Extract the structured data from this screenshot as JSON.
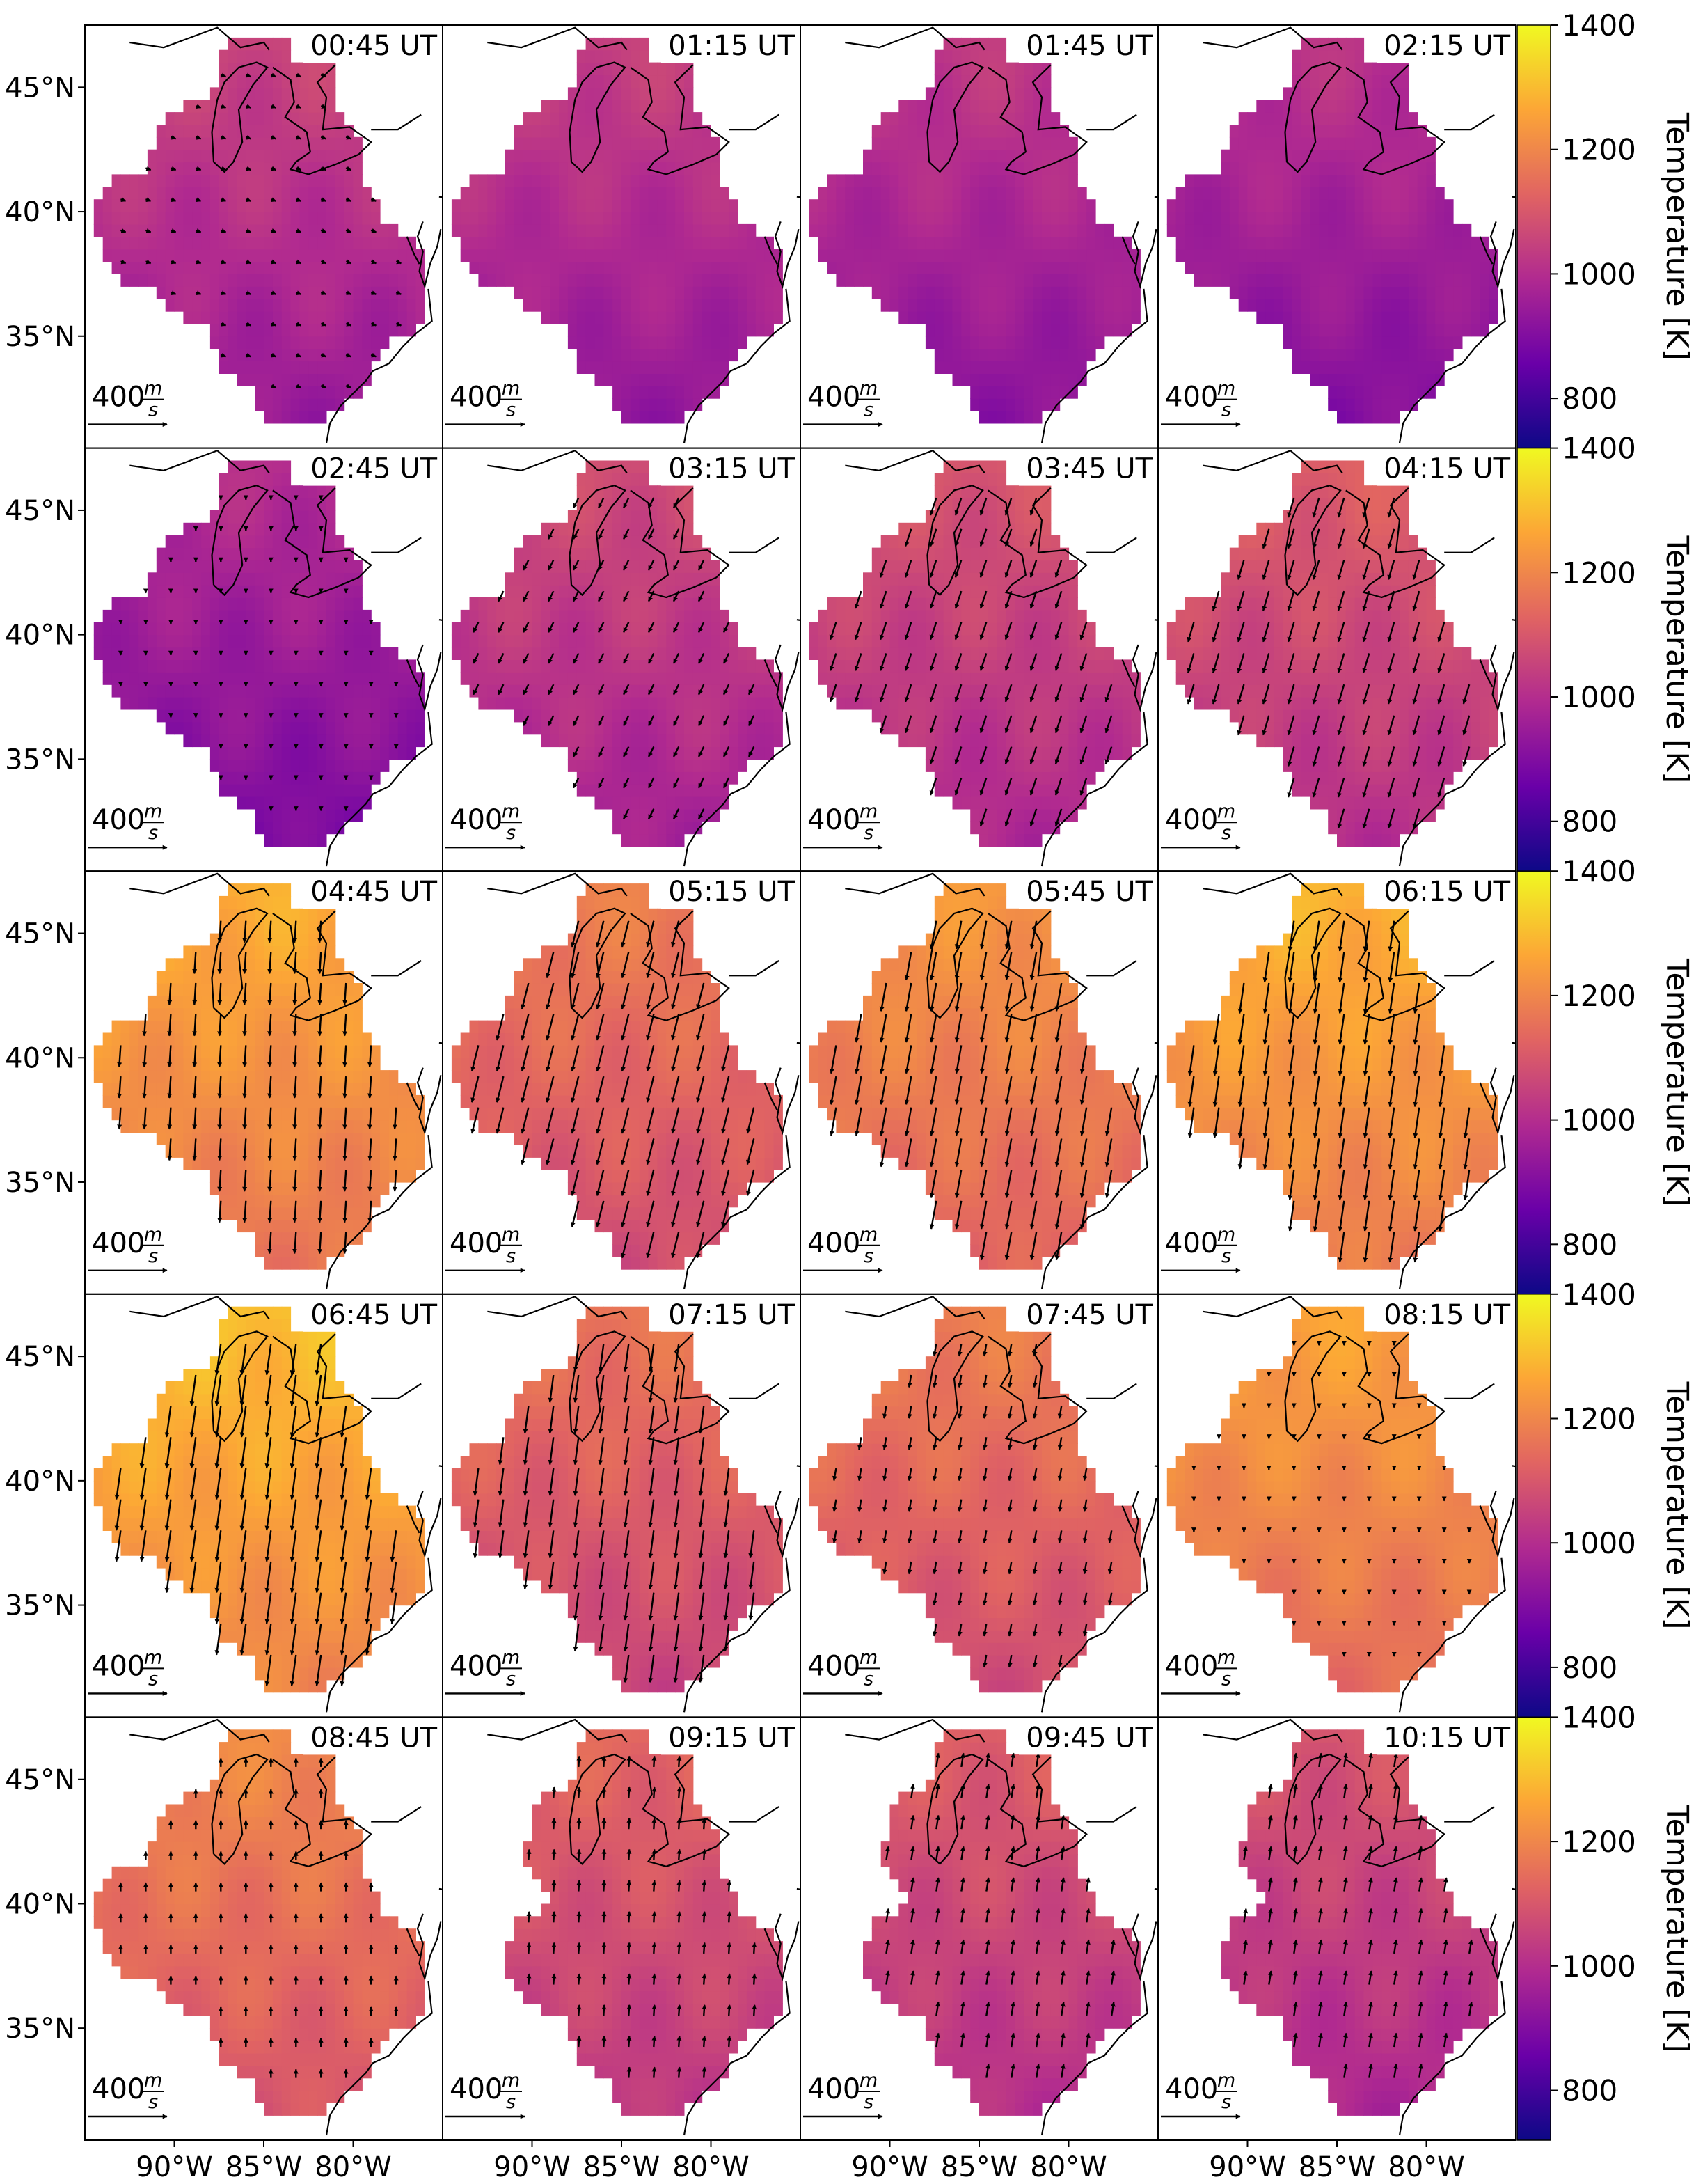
{
  "chart_data": {
    "type": "heatmap",
    "title": "",
    "panel_layout": {
      "rows": 5,
      "cols": 4
    },
    "panels": [
      {
        "time": "00:45 UT",
        "mean_temperature_K": 1000,
        "wind_u_ms": 70,
        "wind_v_ms": -25,
        "mask": "full"
      },
      {
        "time": "01:15 UT",
        "mean_temperature_K": 990,
        "wind_u_ms": 0,
        "wind_v_ms": 0,
        "mask": "full"
      },
      {
        "time": "01:45 UT",
        "mean_temperature_K": 975,
        "wind_u_ms": 0,
        "wind_v_ms": 0,
        "mask": "full"
      },
      {
        "time": "02:15 UT",
        "mean_temperature_K": 960,
        "wind_u_ms": 0,
        "wind_v_ms": 0,
        "mask": "full"
      },
      {
        "time": "02:45 UT",
        "mean_temperature_K": 945,
        "wind_u_ms": 0,
        "wind_v_ms": -25,
        "mask": "full"
      },
      {
        "time": "03:15 UT",
        "mean_temperature_K": 1020,
        "wind_u_ms": -70,
        "wind_v_ms": -140,
        "mask": "full"
      },
      {
        "time": "03:45 UT",
        "mean_temperature_K": 1040,
        "wind_u_ms": -80,
        "wind_v_ms": -240,
        "mask": "full"
      },
      {
        "time": "04:15 UT",
        "mean_temperature_K": 1060,
        "wind_u_ms": -80,
        "wind_v_ms": -270,
        "mask": "full"
      },
      {
        "time": "04:45 UT",
        "mean_temperature_K": 1220,
        "wind_u_ms": -20,
        "wind_v_ms": -300,
        "mask": "full"
      },
      {
        "time": "05:15 UT",
        "mean_temperature_K": 1130,
        "wind_u_ms": -90,
        "wind_v_ms": -360,
        "mask": "full"
      },
      {
        "time": "05:45 UT",
        "mean_temperature_K": 1180,
        "wind_u_ms": -70,
        "wind_v_ms": -390,
        "mask": "full"
      },
      {
        "time": "06:15 UT",
        "mean_temperature_K": 1230,
        "wind_u_ms": -60,
        "wind_v_ms": -420,
        "mask": "full"
      },
      {
        "time": "06:45 UT",
        "mean_temperature_K": 1250,
        "wind_u_ms": -60,
        "wind_v_ms": -430,
        "mask": "full"
      },
      {
        "time": "07:15 UT",
        "mean_temperature_K": 1110,
        "wind_u_ms": -50,
        "wind_v_ms": -380,
        "mask": "full"
      },
      {
        "time": "07:45 UT",
        "mean_temperature_K": 1130,
        "wind_u_ms": -30,
        "wind_v_ms": -170,
        "mask": "full"
      },
      {
        "time": "08:15 UT",
        "mean_temperature_K": 1200,
        "wind_u_ms": 0,
        "wind_v_ms": -20,
        "mask": "full"
      },
      {
        "time": "08:45 UT",
        "mean_temperature_K": 1150,
        "wind_u_ms": 0,
        "wind_v_ms": 120,
        "mask": "full"
      },
      {
        "time": "09:15 UT",
        "mean_temperature_K": 1080,
        "wind_u_ms": 10,
        "wind_v_ms": 150,
        "mask": "notch"
      },
      {
        "time": "09:45 UT",
        "mean_temperature_K": 1060,
        "wind_u_ms": 30,
        "wind_v_ms": 190,
        "mask": "notch"
      },
      {
        "time": "10:15 UT",
        "mean_temperature_K": 1040,
        "wind_u_ms": 30,
        "wind_v_ms": 190,
        "mask": "notch"
      }
    ],
    "x_ticks": [
      "90°W",
      "85°W",
      "80°W"
    ],
    "y_ticks": [
      "45°N",
      "40°N",
      "35°N"
    ],
    "colorbar": {
      "label": "Temperature [K]",
      "ticks": [
        "800",
        "1000",
        "1200",
        "1400"
      ],
      "range": [
        720,
        1400
      ],
      "colormap": "plasma",
      "stops": [
        "#0d0887",
        "#6a00a8",
        "#b12a90",
        "#e16462",
        "#fca636",
        "#f0f921"
      ]
    },
    "reference_arrow": {
      "value": "400",
      "numerator": "m",
      "denominator": "s"
    },
    "grid": false
  }
}
